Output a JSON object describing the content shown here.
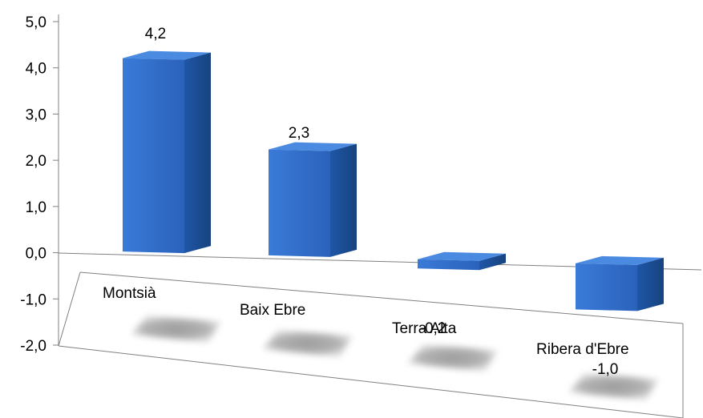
{
  "chart_data": {
    "type": "bar",
    "style": "3d-perspective",
    "categories": [
      "Montsià",
      "Baix Ebre",
      "Terra Alta",
      "Ribera d'Ebre"
    ],
    "values": [
      4.2,
      2.3,
      -0.2,
      -1.0
    ],
    "value_labels": [
      "4,2",
      "2,3",
      "-0,2",
      "-1,0"
    ],
    "y_ticks": [
      5.0,
      4.0,
      3.0,
      2.0,
      1.0,
      0.0,
      -1.0,
      -2.0
    ],
    "y_tick_labels": [
      "5,0",
      "4,0",
      "3,0",
      "2,0",
      "1,0",
      "0,0",
      "-1,0",
      "-2,0"
    ],
    "ylim": [
      -2.0,
      5.0
    ],
    "title": "",
    "xlabel": "",
    "ylabel": "",
    "legend": "none",
    "grid": false,
    "bar_color": "#2f6ecb",
    "bar_side_color": "#1d4f9a",
    "bar_top_color": "#4a8ae0"
  }
}
